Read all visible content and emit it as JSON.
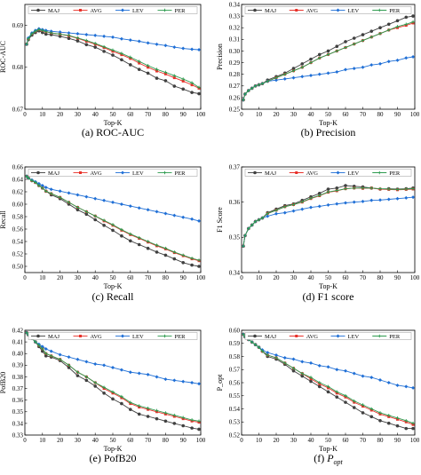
{
  "colors": {
    "MAJ": "#404040",
    "AVG": "#e8312a",
    "LEV": "#1f6fd6",
    "PER": "#2e9b4f"
  },
  "chart_data": [
    {
      "type": "line",
      "caption": "(a)  ROC-AUC",
      "xlabel": "Top-K",
      "ylabel": "ROC-AUC",
      "xlim": [
        0,
        100
      ],
      "ylim": [
        0.67,
        0.695
      ],
      "xticks": [
        "0",
        "10",
        "20",
        "30",
        "40",
        "50",
        "60",
        "70",
        "80",
        "90",
        "100"
      ],
      "yticks": [
        "0.67",
        "0.68",
        "0.69"
      ],
      "ytick_values": [
        0.67,
        0.68,
        0.69
      ],
      "legend": "top",
      "x": [
        1,
        2,
        4,
        6,
        8,
        10,
        12,
        15,
        20,
        25,
        30,
        35,
        40,
        45,
        50,
        55,
        60,
        65,
        70,
        75,
        80,
        85,
        90,
        95,
        99
      ],
      "series": [
        {
          "name": "MAJ",
          "values": [
            0.6855,
            0.6866,
            0.6877,
            0.6883,
            0.6887,
            0.6883,
            0.6879,
            0.6878,
            0.6874,
            0.6869,
            0.6863,
            0.6854,
            0.6848,
            0.6838,
            0.6829,
            0.6818,
            0.6806,
            0.6795,
            0.6786,
            0.6774,
            0.6768,
            0.6755,
            0.6748,
            0.674,
            0.6737
          ]
        },
        {
          "name": "AVG",
          "values": [
            0.6855,
            0.6868,
            0.688,
            0.6886,
            0.689,
            0.6888,
            0.6885,
            0.6882,
            0.6879,
            0.6875,
            0.6869,
            0.6862,
            0.6855,
            0.6847,
            0.6838,
            0.683,
            0.6821,
            0.681,
            0.68,
            0.6791,
            0.6784,
            0.6775,
            0.6767,
            0.6758,
            0.675
          ]
        },
        {
          "name": "LEV",
          "values": [
            0.6855,
            0.687,
            0.6882,
            0.6888,
            0.6892,
            0.689,
            0.6888,
            0.6886,
            0.6884,
            0.6882,
            0.688,
            0.6878,
            0.6876,
            0.6874,
            0.6872,
            0.6868,
            0.6865,
            0.6862,
            0.6858,
            0.6855,
            0.6852,
            0.6848,
            0.6845,
            0.6843,
            0.6842
          ]
        },
        {
          "name": "PER",
          "values": [
            0.6855,
            0.6868,
            0.688,
            0.6886,
            0.689,
            0.6888,
            0.6885,
            0.6882,
            0.6879,
            0.6876,
            0.687,
            0.6864,
            0.6857,
            0.6849,
            0.6841,
            0.6833,
            0.6824,
            0.6814,
            0.6804,
            0.6795,
            0.6788,
            0.678,
            0.6772,
            0.6763,
            0.6752
          ]
        }
      ]
    },
    {
      "type": "line",
      "caption": "(b)  Precision",
      "xlabel": "Top-K",
      "ylabel": "Precision",
      "xlim": [
        0,
        100
      ],
      "ylim": [
        0.25,
        0.34
      ],
      "xticks": [
        "0",
        "10",
        "20",
        "30",
        "40",
        "50",
        "60",
        "70",
        "80",
        "90",
        "100"
      ],
      "yticks": [
        "0.25",
        "0.26",
        "0.27",
        "0.28",
        "0.29",
        "0.30",
        "0.31",
        "0.32",
        "0.33",
        "0.34"
      ],
      "ytick_values": [
        0.25,
        0.26,
        0.27,
        0.28,
        0.29,
        0.3,
        0.31,
        0.32,
        0.33,
        0.34
      ],
      "legend": "top",
      "x": [
        1,
        2,
        4,
        6,
        8,
        10,
        12,
        15,
        20,
        25,
        30,
        35,
        40,
        45,
        50,
        55,
        60,
        65,
        70,
        75,
        80,
        85,
        90,
        95,
        99
      ],
      "series": [
        {
          "name": "MAJ",
          "values": [
            0.258,
            0.263,
            0.266,
            0.268,
            0.27,
            0.271,
            0.272,
            0.275,
            0.278,
            0.281,
            0.285,
            0.289,
            0.293,
            0.297,
            0.3,
            0.304,
            0.308,
            0.311,
            0.314,
            0.317,
            0.32,
            0.323,
            0.326,
            0.329,
            0.33
          ]
        },
        {
          "name": "AVG",
          "values": [
            0.258,
            0.263,
            0.266,
            0.268,
            0.27,
            0.271,
            0.272,
            0.274,
            0.277,
            0.28,
            0.283,
            0.286,
            0.29,
            0.294,
            0.297,
            0.3,
            0.303,
            0.306,
            0.309,
            0.312,
            0.315,
            0.318,
            0.32,
            0.322,
            0.324
          ]
        },
        {
          "name": "LEV",
          "values": [
            0.258,
            0.263,
            0.266,
            0.268,
            0.27,
            0.271,
            0.272,
            0.274,
            0.275,
            0.276,
            0.277,
            0.278,
            0.279,
            0.28,
            0.281,
            0.282,
            0.284,
            0.285,
            0.286,
            0.288,
            0.289,
            0.291,
            0.292,
            0.294,
            0.295
          ]
        },
        {
          "name": "PER",
          "values": [
            0.258,
            0.263,
            0.266,
            0.268,
            0.27,
            0.271,
            0.272,
            0.274,
            0.277,
            0.28,
            0.283,
            0.286,
            0.29,
            0.294,
            0.297,
            0.3,
            0.303,
            0.306,
            0.309,
            0.312,
            0.315,
            0.318,
            0.321,
            0.323,
            0.325
          ]
        }
      ]
    },
    {
      "type": "line",
      "caption": "(c)  Recall",
      "xlabel": "Top-K",
      "ylabel": "Recall",
      "xlim": [
        0,
        100
      ],
      "ylim": [
        0.49,
        0.66
      ],
      "xticks": [
        "0",
        "10",
        "20",
        "30",
        "40",
        "50",
        "60",
        "70",
        "80",
        "90",
        "100"
      ],
      "yticks": [
        "0.50",
        "0.52",
        "0.54",
        "0.56",
        "0.58",
        "0.60",
        "0.62",
        "0.64",
        "0.66"
      ],
      "ytick_values": [
        0.5,
        0.52,
        0.54,
        0.56,
        0.58,
        0.6,
        0.62,
        0.64,
        0.66
      ],
      "legend": "top",
      "x": [
        1,
        2,
        4,
        6,
        8,
        10,
        12,
        15,
        20,
        25,
        30,
        35,
        40,
        45,
        50,
        55,
        60,
        65,
        70,
        75,
        80,
        85,
        90,
        95,
        99
      ],
      "series": [
        {
          "name": "MAJ",
          "values": [
            0.645,
            0.642,
            0.638,
            0.635,
            0.63,
            0.626,
            0.621,
            0.615,
            0.609,
            0.6,
            0.591,
            0.584,
            0.575,
            0.566,
            0.558,
            0.549,
            0.541,
            0.535,
            0.529,
            0.523,
            0.518,
            0.512,
            0.506,
            0.502,
            0.5
          ]
        },
        {
          "name": "AVG",
          "values": [
            0.645,
            0.642,
            0.638,
            0.635,
            0.63,
            0.626,
            0.621,
            0.617,
            0.611,
            0.603,
            0.595,
            0.588,
            0.581,
            0.573,
            0.566,
            0.558,
            0.551,
            0.545,
            0.539,
            0.533,
            0.528,
            0.522,
            0.517,
            0.512,
            0.509
          ]
        },
        {
          "name": "LEV",
          "values": [
            0.645,
            0.642,
            0.639,
            0.636,
            0.633,
            0.63,
            0.627,
            0.624,
            0.621,
            0.618,
            0.615,
            0.612,
            0.609,
            0.606,
            0.603,
            0.6,
            0.597,
            0.594,
            0.591,
            0.588,
            0.585,
            0.582,
            0.579,
            0.576,
            0.573
          ]
        },
        {
          "name": "PER",
          "values": [
            0.645,
            0.642,
            0.638,
            0.635,
            0.63,
            0.626,
            0.621,
            0.617,
            0.611,
            0.603,
            0.595,
            0.588,
            0.581,
            0.574,
            0.567,
            0.559,
            0.552,
            0.546,
            0.54,
            0.534,
            0.529,
            0.523,
            0.518,
            0.513,
            0.51
          ]
        }
      ]
    },
    {
      "type": "line",
      "caption": "(d)  F1 score",
      "xlabel": "Top-K",
      "ylabel": "F1 Score",
      "xlim": [
        0,
        100
      ],
      "ylim": [
        0.34,
        0.37
      ],
      "xticks": [
        "0",
        "10",
        "20",
        "30",
        "40",
        "50",
        "60",
        "70",
        "80",
        "90",
        "100"
      ],
      "yticks": [
        "0.34",
        "0.35",
        "0.36",
        "0.37"
      ],
      "ytick_values": [
        0.34,
        0.35,
        0.36,
        0.37
      ],
      "legend": "top",
      "x": [
        1,
        2,
        4,
        6,
        8,
        10,
        12,
        15,
        20,
        25,
        30,
        35,
        40,
        45,
        50,
        55,
        60,
        65,
        70,
        75,
        80,
        85,
        90,
        95,
        99
      ],
      "series": [
        {
          "name": "MAJ",
          "values": [
            0.3475,
            0.3505,
            0.3525,
            0.3535,
            0.3545,
            0.355,
            0.3555,
            0.357,
            0.358,
            0.359,
            0.3595,
            0.3605,
            0.3615,
            0.3625,
            0.3637,
            0.364,
            0.3647,
            0.3645,
            0.3643,
            0.364,
            0.3637,
            0.3638,
            0.3637,
            0.3638,
            0.364
          ]
        },
        {
          "name": "AVG",
          "values": [
            0.3475,
            0.3505,
            0.3525,
            0.3535,
            0.3545,
            0.355,
            0.3555,
            0.3568,
            0.3577,
            0.3587,
            0.3593,
            0.36,
            0.361,
            0.3618,
            0.3628,
            0.3632,
            0.3638,
            0.364,
            0.3639,
            0.364,
            0.3637,
            0.3636,
            0.3635,
            0.3636,
            0.3637
          ]
        },
        {
          "name": "LEV",
          "values": [
            0.3475,
            0.3505,
            0.3525,
            0.3535,
            0.3545,
            0.355,
            0.3555,
            0.356,
            0.3567,
            0.357,
            0.3575,
            0.358,
            0.3585,
            0.3588,
            0.3592,
            0.3595,
            0.3598,
            0.36,
            0.3602,
            0.3605,
            0.3606,
            0.3608,
            0.361,
            0.3612,
            0.3614
          ]
        },
        {
          "name": "PER",
          "values": [
            0.3475,
            0.3505,
            0.3525,
            0.3535,
            0.3545,
            0.355,
            0.3555,
            0.3568,
            0.3577,
            0.3587,
            0.3593,
            0.3601,
            0.3611,
            0.3619,
            0.3629,
            0.3633,
            0.3638,
            0.364,
            0.364,
            0.364,
            0.3638,
            0.3637,
            0.3636,
            0.3637,
            0.3638
          ]
        }
      ]
    },
    {
      "type": "line",
      "caption": "(e)  PofB20",
      "xlabel": "Top-K",
      "ylabel": "PofB20",
      "xlim": [
        0,
        100
      ],
      "ylim": [
        0.33,
        0.42
      ],
      "xticks": [
        "0",
        "10",
        "20",
        "30",
        "40",
        "50",
        "60",
        "70",
        "80",
        "90",
        "100"
      ],
      "yticks": [
        "0.33",
        "0.34",
        "0.35",
        "0.36",
        "0.37",
        "0.38",
        "0.39",
        "0.40",
        "0.41",
        "0.42"
      ],
      "ytick_values": [
        0.33,
        0.34,
        0.35,
        0.36,
        0.37,
        0.38,
        0.39,
        0.4,
        0.41,
        0.42
      ],
      "legend": "top",
      "x": [
        1,
        2,
        4,
        6,
        8,
        10,
        12,
        15,
        20,
        25,
        30,
        35,
        40,
        45,
        50,
        55,
        60,
        65,
        70,
        75,
        80,
        85,
        90,
        95,
        99
      ],
      "series": [
        {
          "name": "MAJ",
          "values": [
            0.418,
            0.416,
            0.413,
            0.41,
            0.406,
            0.402,
            0.398,
            0.397,
            0.394,
            0.388,
            0.381,
            0.377,
            0.372,
            0.366,
            0.361,
            0.357,
            0.352,
            0.348,
            0.346,
            0.344,
            0.342,
            0.34,
            0.338,
            0.336,
            0.335
          ]
        },
        {
          "name": "AVG",
          "values": [
            0.418,
            0.416,
            0.413,
            0.41,
            0.407,
            0.404,
            0.4,
            0.398,
            0.395,
            0.39,
            0.384,
            0.38,
            0.375,
            0.37,
            0.366,
            0.362,
            0.357,
            0.354,
            0.352,
            0.35,
            0.348,
            0.346,
            0.344,
            0.342,
            0.341
          ]
        },
        {
          "name": "LEV",
          "values": [
            0.418,
            0.416,
            0.413,
            0.41,
            0.408,
            0.406,
            0.404,
            0.402,
            0.399,
            0.397,
            0.395,
            0.393,
            0.391,
            0.39,
            0.388,
            0.386,
            0.384,
            0.383,
            0.382,
            0.38,
            0.378,
            0.377,
            0.376,
            0.375,
            0.374
          ]
        },
        {
          "name": "PER",
          "values": [
            0.418,
            0.416,
            0.413,
            0.41,
            0.407,
            0.404,
            0.4,
            0.398,
            0.395,
            0.39,
            0.384,
            0.38,
            0.375,
            0.371,
            0.367,
            0.363,
            0.358,
            0.355,
            0.353,
            0.351,
            0.349,
            0.347,
            0.345,
            0.343,
            0.342
          ]
        }
      ]
    },
    {
      "type": "line",
      "caption": "(f)  ",
      "caption_math": "P",
      "caption_sub": "opt",
      "xlabel": "Top-K",
      "ylabel": "P_opt",
      "xlim": [
        0,
        100
      ],
      "ylim": [
        0.52,
        0.6
      ],
      "xticks": [
        "0",
        "10",
        "20",
        "30",
        "40",
        "50",
        "60",
        "70",
        "80",
        "90",
        "100"
      ],
      "yticks": [
        "0.52",
        "0.53",
        "0.54",
        "0.55",
        "0.56",
        "0.57",
        "0.58",
        "0.59",
        "0.60"
      ],
      "ytick_values": [
        0.52,
        0.53,
        0.54,
        0.55,
        0.56,
        0.57,
        0.58,
        0.59,
        0.6
      ],
      "legend": "top",
      "x": [
        1,
        2,
        4,
        6,
        8,
        10,
        12,
        15,
        20,
        25,
        30,
        35,
        40,
        45,
        50,
        55,
        60,
        65,
        70,
        75,
        80,
        85,
        90,
        95,
        99
      ],
      "series": [
        {
          "name": "MAJ",
          "values": [
            0.597,
            0.595,
            0.593,
            0.591,
            0.589,
            0.587,
            0.584,
            0.58,
            0.578,
            0.574,
            0.569,
            0.565,
            0.561,
            0.557,
            0.553,
            0.549,
            0.545,
            0.541,
            0.537,
            0.534,
            0.531,
            0.529,
            0.527,
            0.525,
            0.525
          ]
        },
        {
          "name": "AVG",
          "values": [
            0.597,
            0.595,
            0.593,
            0.591,
            0.589,
            0.587,
            0.584,
            0.581,
            0.579,
            0.575,
            0.571,
            0.567,
            0.563,
            0.559,
            0.556,
            0.552,
            0.549,
            0.545,
            0.542,
            0.539,
            0.536,
            0.534,
            0.532,
            0.53,
            0.528
          ]
        },
        {
          "name": "LEV",
          "values": [
            0.597,
            0.595,
            0.593,
            0.591,
            0.589,
            0.587,
            0.585,
            0.583,
            0.581,
            0.579,
            0.578,
            0.576,
            0.575,
            0.573,
            0.572,
            0.57,
            0.569,
            0.567,
            0.565,
            0.564,
            0.562,
            0.56,
            0.558,
            0.557,
            0.556
          ]
        },
        {
          "name": "PER",
          "values": [
            0.597,
            0.595,
            0.593,
            0.591,
            0.589,
            0.587,
            0.584,
            0.581,
            0.579,
            0.575,
            0.571,
            0.567,
            0.564,
            0.56,
            0.557,
            0.553,
            0.55,
            0.546,
            0.543,
            0.54,
            0.537,
            0.535,
            0.533,
            0.531,
            0.529
          ]
        }
      ]
    }
  ]
}
